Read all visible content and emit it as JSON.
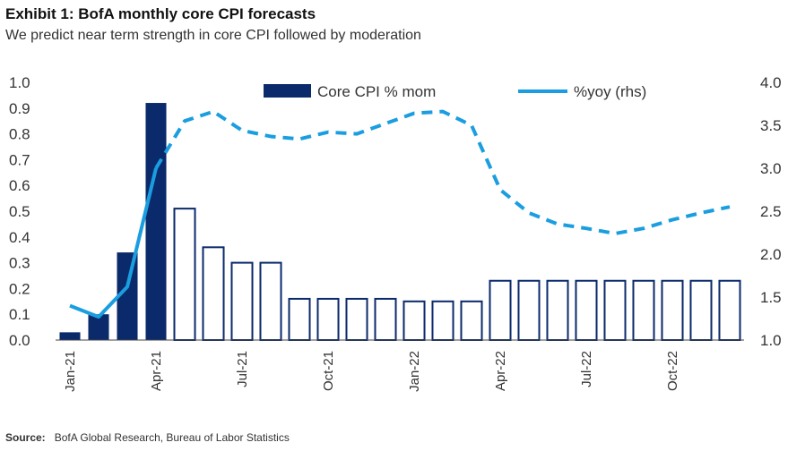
{
  "title": "Exhibit 1: BofA monthly core CPI forecasts",
  "subtitle": "We predict near term strength in core CPI followed by moderation",
  "source_label": "Source:",
  "source_text": "BofA Global Research, Bureau of Labor Statistics",
  "colors": {
    "navy": "#0a2a6b",
    "blue": "#1a9ee0"
  },
  "chart_data": {
    "type": "bar",
    "categories": [
      "Jan-21",
      "Feb-21",
      "Mar-21",
      "Apr-21",
      "May-21",
      "Jun-21",
      "Jul-21",
      "Aug-21",
      "Sep-21",
      "Oct-21",
      "Nov-21",
      "Dec-21",
      "Jan-22",
      "Feb-22",
      "Mar-22",
      "Apr-22",
      "May-22",
      "Jun-22",
      "Jul-22",
      "Aug-22",
      "Sep-22",
      "Oct-22",
      "Nov-22",
      "Dec-22"
    ],
    "xtick_labels": [
      "Jan-21",
      "Apr-21",
      "Jul-21",
      "Oct-21",
      "Jan-22",
      "Apr-22",
      "Jul-22",
      "Oct-22"
    ],
    "xtick_indices": [
      0,
      3,
      6,
      9,
      12,
      15,
      18,
      21
    ],
    "series": [
      {
        "name": "Core CPI % mom",
        "axis": "left",
        "kind": "bar",
        "values": [
          0.03,
          0.1,
          0.34,
          0.92,
          0.51,
          0.36,
          0.3,
          0.3,
          0.16,
          0.16,
          0.16,
          0.16,
          0.15,
          0.15,
          0.15,
          0.23,
          0.23,
          0.23,
          0.23,
          0.23,
          0.23,
          0.23,
          0.23,
          0.23
        ],
        "actual_count": 4
      },
      {
        "name": "%yoy (rhs)",
        "axis": "right",
        "kind": "line",
        "values": [
          1.4,
          1.27,
          1.62,
          3.0,
          3.55,
          3.66,
          3.44,
          3.37,
          3.34,
          3.42,
          3.4,
          3.52,
          3.64,
          3.66,
          3.5,
          2.75,
          2.48,
          2.35,
          2.3,
          2.24,
          2.3,
          2.4,
          2.48,
          2.55
        ],
        "actual_count": 4
      }
    ],
    "ylim_left": [
      0,
      1.0
    ],
    "ylim_right": [
      1.0,
      4.0
    ],
    "yticks_left": [
      "0.0",
      "0.1",
      "0.2",
      "0.3",
      "0.4",
      "0.5",
      "0.6",
      "0.7",
      "0.8",
      "0.9",
      "1.0"
    ],
    "yticks_right": [
      "1.0",
      "1.5",
      "2.0",
      "2.5",
      "3.0",
      "3.5",
      "4.0"
    ],
    "legend": [
      "Core CPI % mom",
      "%yoy (rhs)"
    ]
  }
}
